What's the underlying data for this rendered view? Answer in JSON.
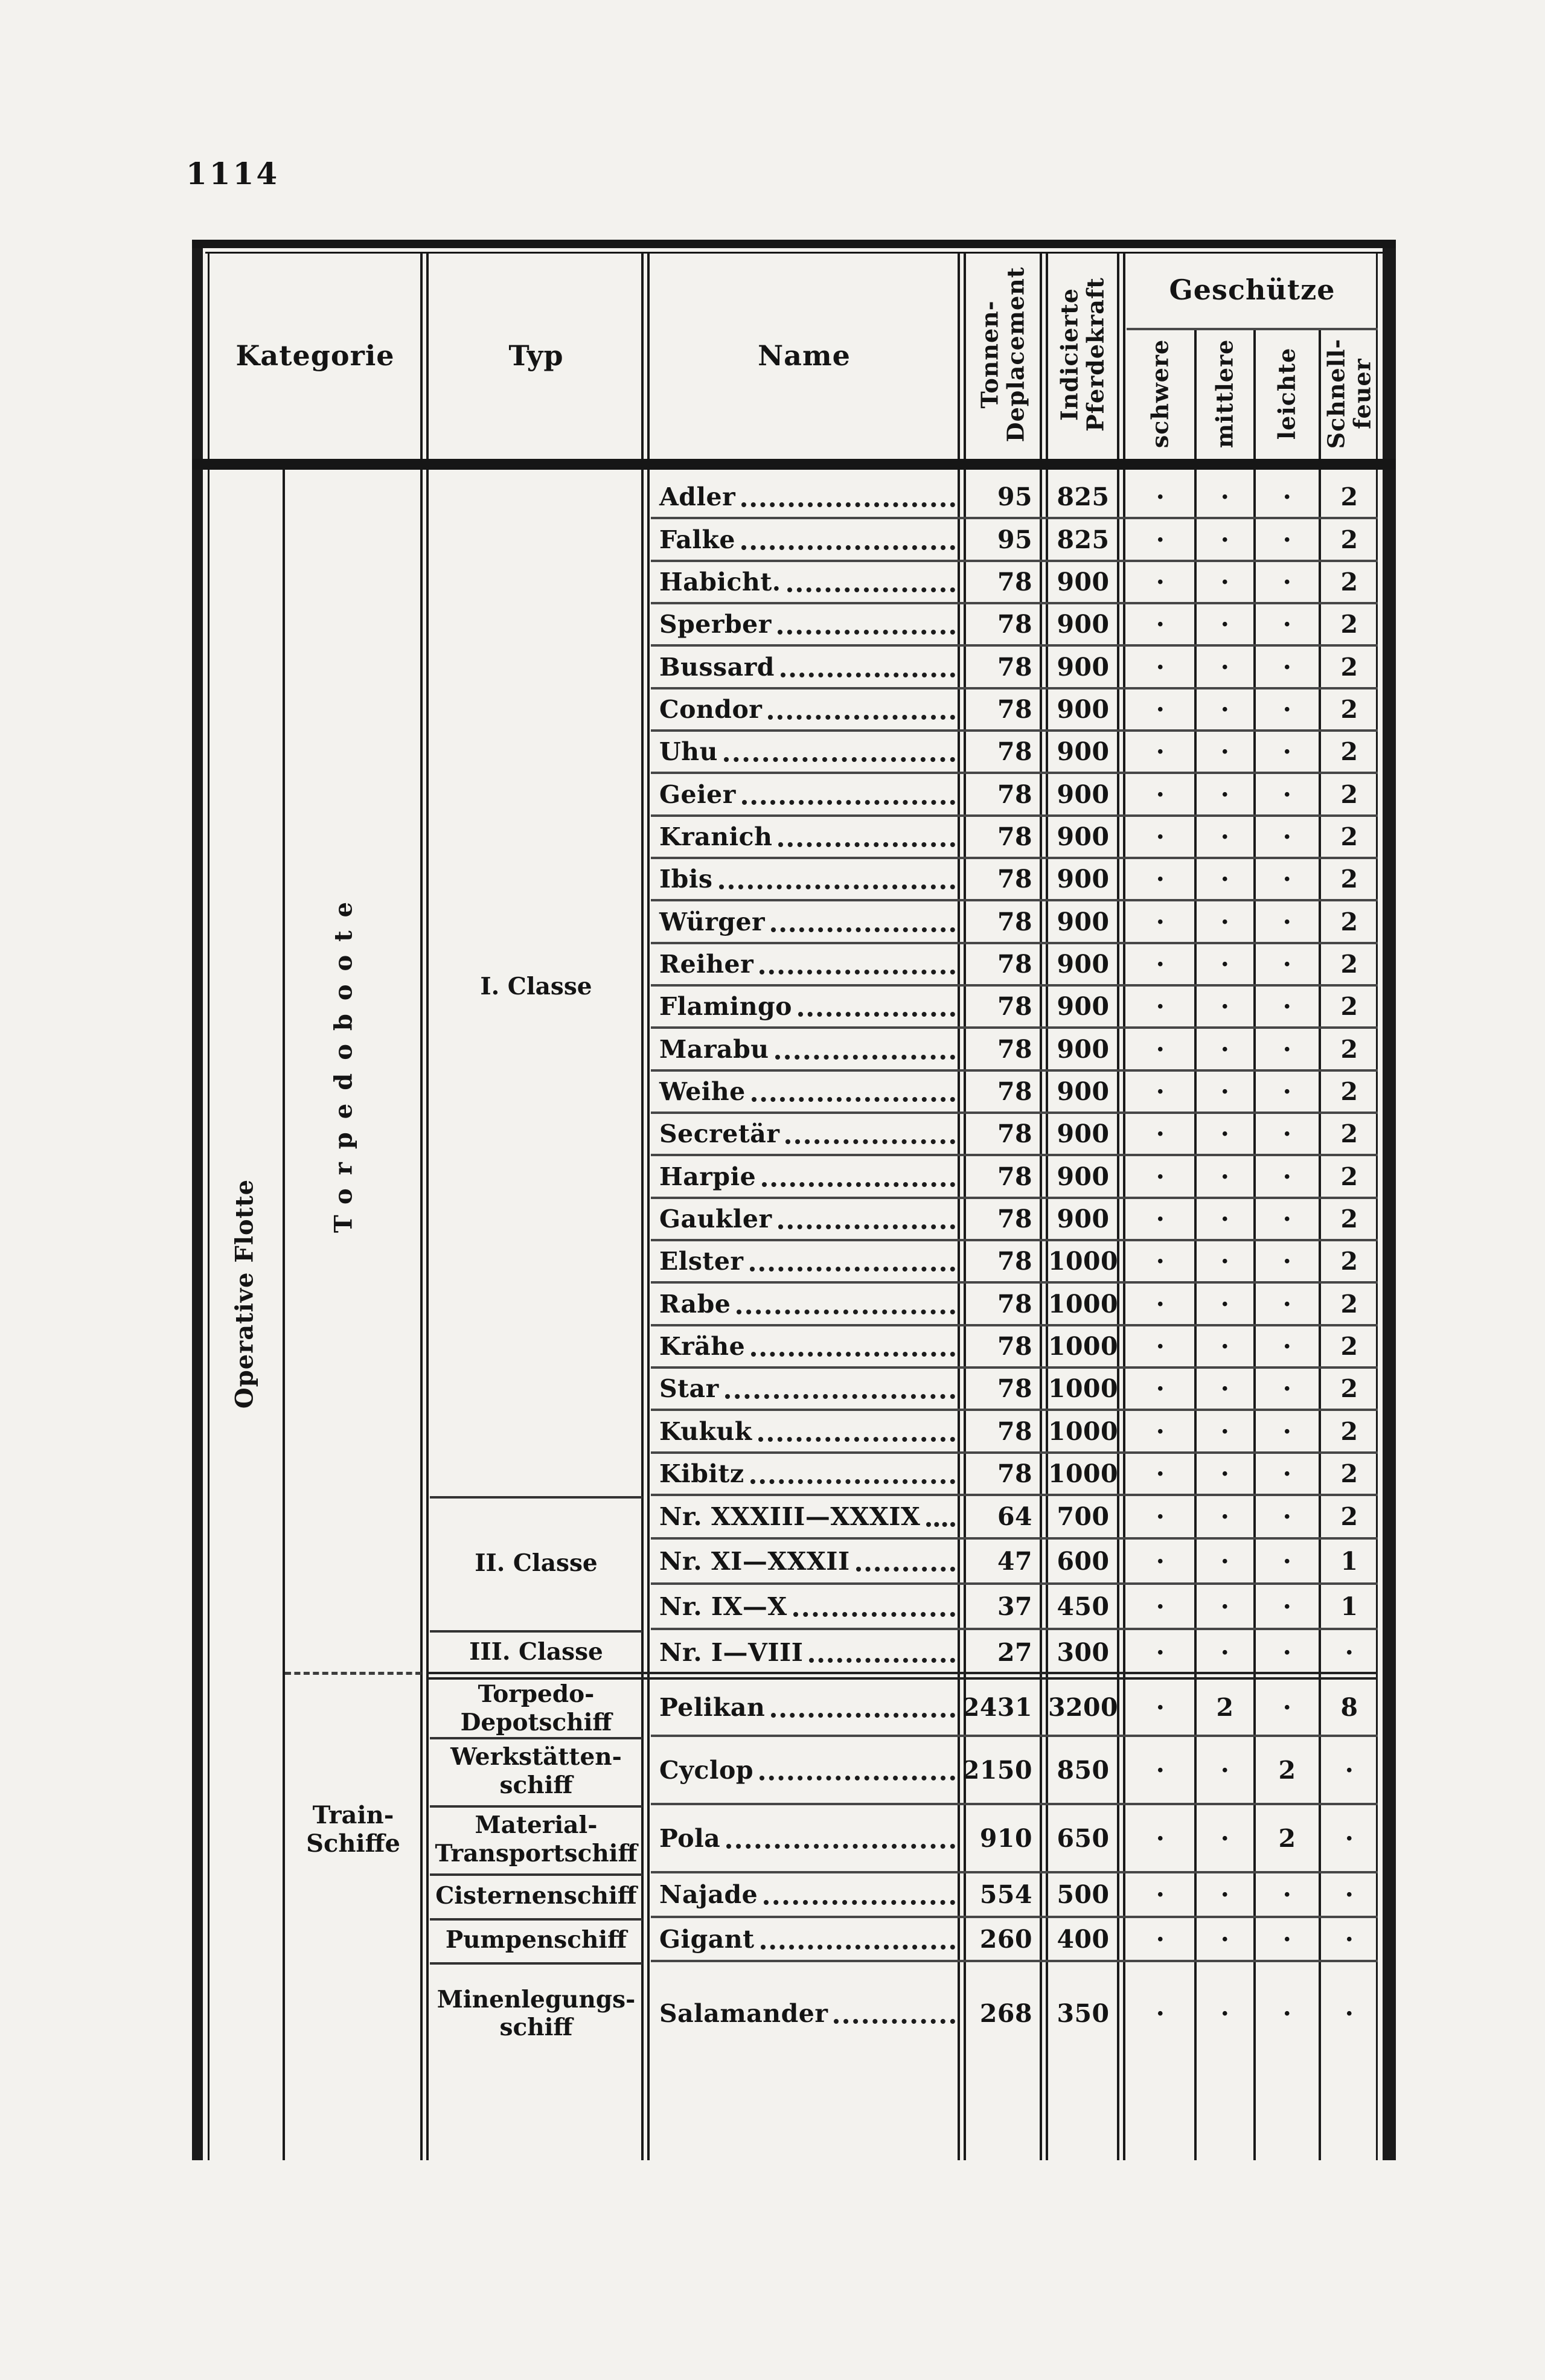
{
  "page": {
    "number": "1114"
  },
  "colors": {
    "paper": "#f3f2ee",
    "ink": "#141414"
  },
  "table": {
    "headers": {
      "kategorie": "Kategorie",
      "typ": "Typ",
      "name": "Name",
      "tonnen": "Tonnen-\nDeplacement",
      "indicierte": "Indicierte\nPferdekraft",
      "geschuetze": "Geschütze",
      "guns": [
        "schwere",
        "mittlere",
        "leichte",
        "Schnell-\nfeuer"
      ]
    },
    "kategorie": {
      "operative": "Operative Flotte",
      "torpedoboote": "Torpedoboote",
      "train": "Train-\nSchiffe"
    },
    "typ_blocks": [
      {
        "label": "I. Classe"
      },
      {
        "label": "II. Classe"
      },
      {
        "label": "III. Classe"
      },
      {
        "label": "Torpedo-\nDepotschiff"
      },
      {
        "label": "Werkstätten-\nschiff"
      },
      {
        "label": "Material-\nTransportschiff"
      },
      {
        "label": "Cisternenschiff"
      },
      {
        "label": "Pumpenschiff"
      },
      {
        "label": "Minenlegungs-\nschiff"
      }
    ],
    "rows": [
      {
        "name": "Adler",
        "tons": "95",
        "ps": "825",
        "s": "·",
        "m": "·",
        "l": "·",
        "sf": "2"
      },
      {
        "name": "Falke",
        "tons": "95",
        "ps": "825",
        "s": "·",
        "m": "·",
        "l": "·",
        "sf": "2"
      },
      {
        "name": "Habicht.",
        "tons": "78",
        "ps": "900",
        "s": "·",
        "m": "·",
        "l": "·",
        "sf": "2"
      },
      {
        "name": "Sperber",
        "tons": "78",
        "ps": "900",
        "s": "·",
        "m": "·",
        "l": "·",
        "sf": "2"
      },
      {
        "name": "Bussard",
        "tons": "78",
        "ps": "900",
        "s": "·",
        "m": "·",
        "l": "·",
        "sf": "2"
      },
      {
        "name": "Condor",
        "tons": "78",
        "ps": "900",
        "s": "·",
        "m": "·",
        "l": "·",
        "sf": "2"
      },
      {
        "name": "Uhu",
        "tons": "78",
        "ps": "900",
        "s": "·",
        "m": "·",
        "l": "·",
        "sf": "2"
      },
      {
        "name": "Geier",
        "tons": "78",
        "ps": "900",
        "s": "·",
        "m": "·",
        "l": "·",
        "sf": "2"
      },
      {
        "name": "Kranich",
        "tons": "78",
        "ps": "900",
        "s": "·",
        "m": "·",
        "l": "·",
        "sf": "2"
      },
      {
        "name": "Ibis",
        "tons": "78",
        "ps": "900",
        "s": "·",
        "m": "·",
        "l": "·",
        "sf": "2"
      },
      {
        "name": "Würger",
        "tons": "78",
        "ps": "900",
        "s": "·",
        "m": "·",
        "l": "·",
        "sf": "2"
      },
      {
        "name": "Reiher",
        "tons": "78",
        "ps": "900",
        "s": "·",
        "m": "·",
        "l": "·",
        "sf": "2"
      },
      {
        "name": "Flamingo",
        "tons": "78",
        "ps": "900",
        "s": "·",
        "m": "·",
        "l": "·",
        "sf": "2"
      },
      {
        "name": "Marabu",
        "tons": "78",
        "ps": "900",
        "s": "·",
        "m": "·",
        "l": "·",
        "sf": "2"
      },
      {
        "name": "Weihe",
        "tons": "78",
        "ps": "900",
        "s": "·",
        "m": "·",
        "l": "·",
        "sf": "2"
      },
      {
        "name": "Secretär",
        "tons": "78",
        "ps": "900",
        "s": "·",
        "m": "·",
        "l": "·",
        "sf": "2"
      },
      {
        "name": "Harpie",
        "tons": "78",
        "ps": "900",
        "s": "·",
        "m": "·",
        "l": "·",
        "sf": "2"
      },
      {
        "name": "Gaukler",
        "tons": "78",
        "ps": "900",
        "s": "·",
        "m": "·",
        "l": "·",
        "sf": "2"
      },
      {
        "name": "Elster",
        "tons": "78",
        "ps": "1000",
        "s": "·",
        "m": "·",
        "l": "·",
        "sf": "2"
      },
      {
        "name": "Rabe",
        "tons": "78",
        "ps": "1000",
        "s": "·",
        "m": "·",
        "l": "·",
        "sf": "2"
      },
      {
        "name": "Krähe",
        "tons": "78",
        "ps": "1000",
        "s": "·",
        "m": "·",
        "l": "·",
        "sf": "2"
      },
      {
        "name": "Star",
        "tons": "78",
        "ps": "1000",
        "s": "·",
        "m": "·",
        "l": "·",
        "sf": "2"
      },
      {
        "name": "Kukuk",
        "tons": "78",
        "ps": "1000",
        "s": "·",
        "m": "·",
        "l": "·",
        "sf": "2"
      },
      {
        "name": "Kibitz",
        "tons": "78",
        "ps": "1000",
        "s": "·",
        "m": "·",
        "l": "·",
        "sf": "2"
      },
      {
        "name": "Nr. XXXIII—XXXIX",
        "tons": "64",
        "ps": "700",
        "s": "·",
        "m": "·",
        "l": "·",
        "sf": "2"
      },
      {
        "name": "Nr. XI—XXXII",
        "tons": "47",
        "ps": "600",
        "s": "·",
        "m": "·",
        "l": "·",
        "sf": "1"
      },
      {
        "name": "Nr. IX—X",
        "tons": "37",
        "ps": "450",
        "s": "·",
        "m": "·",
        "l": "·",
        "sf": "1"
      },
      {
        "name": "Nr. I—VIII",
        "tons": "27",
        "ps": "300",
        "s": "·",
        "m": "·",
        "l": "·",
        "sf": "·"
      },
      {
        "name": "Pelikan",
        "tons": "2431",
        "ps": "3200",
        "s": "·",
        "m": "2",
        "l": "·",
        "sf": "8"
      },
      {
        "name": "Cyclop",
        "tons": "2150",
        "ps": "850",
        "s": "·",
        "m": "·",
        "l": "2",
        "sf": "·"
      },
      {
        "name": "Pola",
        "tons": "910",
        "ps": "650",
        "s": "·",
        "m": "·",
        "l": "2",
        "sf": "·"
      },
      {
        "name": "Najade",
        "tons": "554",
        "ps": "500",
        "s": "·",
        "m": "·",
        "l": "·",
        "sf": "·"
      },
      {
        "name": "Gigant",
        "tons": "260",
        "ps": "400",
        "s": "·",
        "m": "·",
        "l": "·",
        "sf": "·"
      },
      {
        "name": "Salamander",
        "tons": "268",
        "ps": "350",
        "s": "·",
        "m": "·",
        "l": "·",
        "sf": "·"
      }
    ]
  }
}
